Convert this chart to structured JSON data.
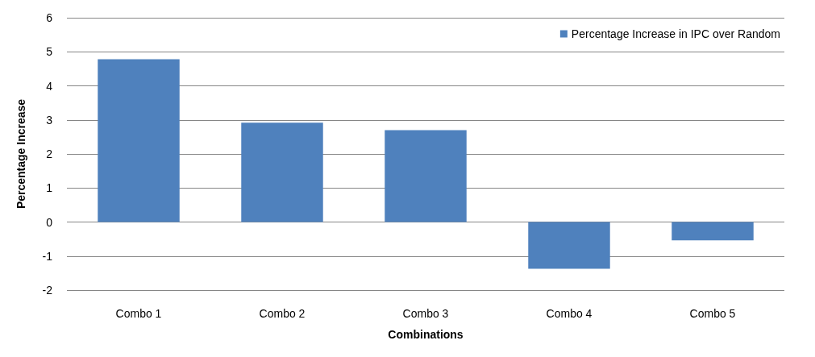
{
  "chart_data": {
    "type": "bar",
    "xlabel": "Combinations",
    "ylabel": "Percentage Increase",
    "categories": [
      "Combo 1",
      "Combo 2",
      "Combo 3",
      "Combo 4",
      "Combo 5"
    ],
    "series": [
      {
        "name": "Percentage Increase in IPC over Random",
        "color": "#4f81bd",
        "values": [
          4.78,
          2.92,
          2.7,
          -1.37,
          -0.54
        ]
      }
    ],
    "ylim": [
      -2,
      6
    ],
    "yticks": [
      -2,
      -1,
      0,
      1,
      2,
      3,
      4,
      5,
      6
    ],
    "grid": "y",
    "legend": "top right"
  }
}
